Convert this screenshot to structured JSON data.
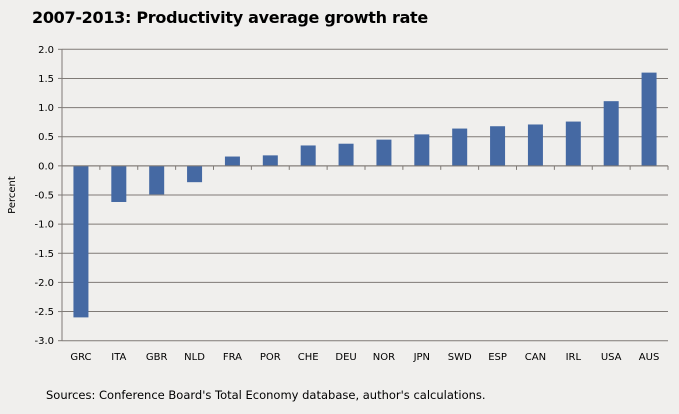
{
  "chart_data": {
    "type": "bar",
    "title": "2007-2013: Productivity average growth rate",
    "xlabel": "",
    "ylabel": "Percent",
    "ylim": [
      -3.0,
      2.0
    ],
    "yticks": [
      "-3.0",
      "-2.5",
      "-2.0",
      "-1.5",
      "-1.0",
      "-0.5",
      "0.0",
      "0.5",
      "1.0",
      "1.5",
      "2.0"
    ],
    "grid": true,
    "legend": "none",
    "categories": [
      "GRC",
      "ITA",
      "GBR",
      "NLD",
      "FRA",
      "POR",
      "CHE",
      "DEU",
      "NOR",
      "JPN",
      "SWD",
      "ESP",
      "CAN",
      "IRL",
      "USA",
      "AUS"
    ],
    "values": [
      -2.6,
      -0.62,
      -0.49,
      -0.28,
      0.16,
      0.18,
      0.35,
      0.38,
      0.45,
      0.54,
      0.64,
      0.68,
      0.71,
      0.76,
      1.11,
      1.6
    ],
    "bar_color": "#4569a3",
    "note": "Sources: Conference  Board's Total Economy database, author's calculations."
  }
}
